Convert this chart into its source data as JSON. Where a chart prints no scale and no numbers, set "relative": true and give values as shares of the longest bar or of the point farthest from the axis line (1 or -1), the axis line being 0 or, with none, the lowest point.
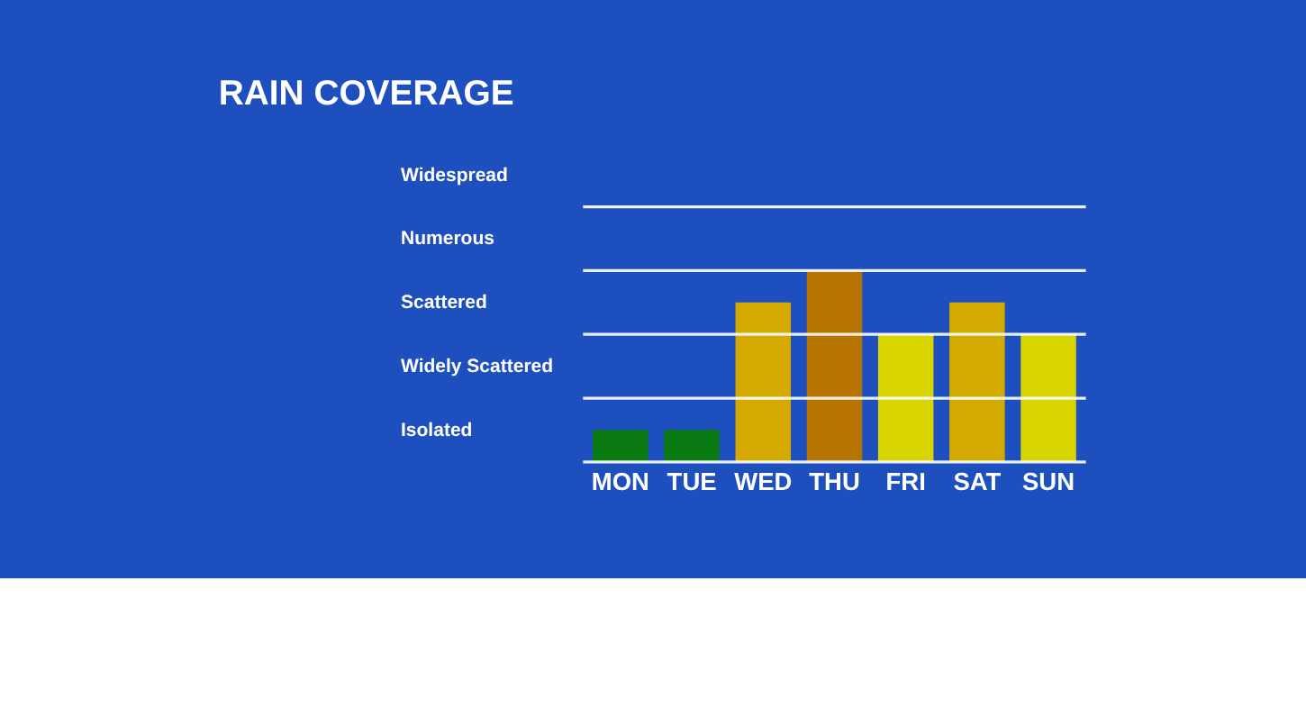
{
  "chart_data": {
    "type": "bar",
    "title": "RAIN COVERAGE",
    "relative": true,
    "categories": [
      "MON",
      "TUE",
      "WED",
      "THU",
      "FRI",
      "SAT",
      "SUN"
    ],
    "values": [
      0.167,
      0.167,
      0.833,
      1,
      0.667,
      0.833,
      0.667
    ],
    "colors": [
      "#0a7a12",
      "#0a7a12",
      "#d4aa00",
      "#b87400",
      "#d8d400",
      "#d4aa00",
      "#d8d400"
    ],
    "annotations": [
      "Isolated",
      "Widely Scattered",
      "Scattered",
      "Numerous",
      "Widespread"
    ],
    "ref_lines": [
      {
        "axis": "y",
        "value": 0,
        "color": "#ffffff"
      },
      {
        "axis": "y",
        "value": 0.333,
        "color": "#ffffff"
      },
      {
        "axis": "y",
        "value": 0.667,
        "color": "#ffffff"
      },
      {
        "axis": "y",
        "value": 1,
        "color": "#ffffff"
      },
      {
        "axis": "y",
        "value": 1.333,
        "color": "#ffffff"
      }
    ],
    "legend": false
  }
}
